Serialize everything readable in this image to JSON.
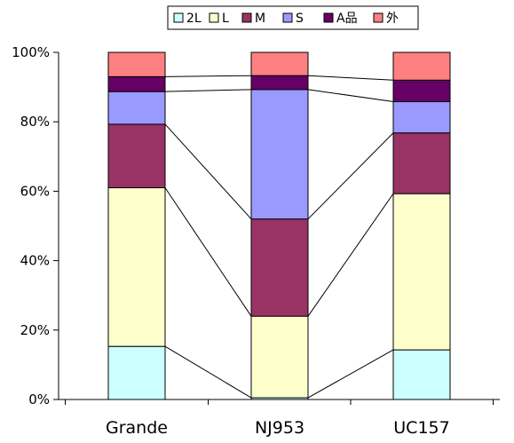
{
  "chart_data": {
    "type": "bar",
    "stacked": true,
    "percent": true,
    "title": "",
    "xlabel": "",
    "ylabel": "",
    "ylim": [
      0,
      100
    ],
    "yticks": [
      "0%",
      "20%",
      "40%",
      "60%",
      "80%",
      "100%"
    ],
    "categories": [
      "Grande",
      "NJ953",
      "UC157"
    ],
    "series": [
      {
        "name": "2L",
        "color": "#ccffff",
        "values": [
          15.3,
          0.5,
          14.3
        ]
      },
      {
        "name": "L",
        "color": "#ffffcc",
        "values": [
          45.7,
          23.5,
          45.0
        ]
      },
      {
        "name": "M",
        "color": "#993366",
        "values": [
          18.3,
          28.0,
          17.5
        ]
      },
      {
        "name": "S",
        "color": "#9999ff",
        "values": [
          9.4,
          37.3,
          9.0
        ]
      },
      {
        "name": "A品",
        "color": "#660066",
        "values": [
          4.3,
          4.0,
          6.2
        ]
      },
      {
        "name": "外",
        "color": "#ff8080",
        "values": [
          7.0,
          6.7,
          8.0
        ]
      }
    ],
    "legend": "top",
    "series_lines": true,
    "grid": false
  }
}
